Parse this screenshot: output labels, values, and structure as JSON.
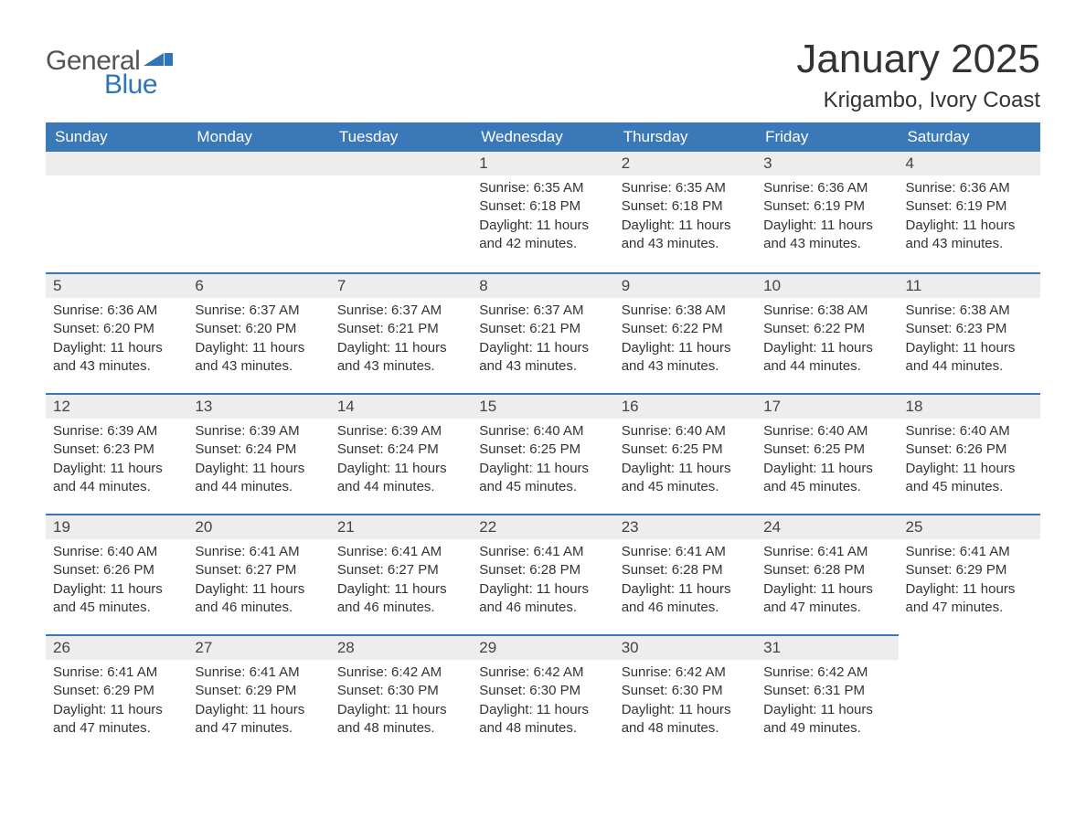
{
  "logo": {
    "text_general": "General",
    "text_blue": "Blue",
    "flag_color": "#2f74b5"
  },
  "title": "January 2025",
  "location": "Krigambo, Ivory Coast",
  "colors": {
    "header_bg": "#3b78b8",
    "header_text": "#ffffff",
    "day_header_bg": "#ededed",
    "day_header_border": "#3b78b8",
    "text": "#333333",
    "background": "#ffffff"
  },
  "typography": {
    "title_fontsize": 44,
    "location_fontsize": 24,
    "weekday_fontsize": 17,
    "daynum_fontsize": 17,
    "body_fontsize": 15
  },
  "weekdays": [
    "Sunday",
    "Monday",
    "Tuesday",
    "Wednesday",
    "Thursday",
    "Friday",
    "Saturday"
  ],
  "labels": {
    "sunrise": "Sunrise:",
    "sunset": "Sunset:",
    "daylight": "Daylight:"
  },
  "weeks": [
    [
      null,
      null,
      null,
      {
        "day": "1",
        "sunrise": "6:35 AM",
        "sunset": "6:18 PM",
        "daylight": "11 hours and 42 minutes."
      },
      {
        "day": "2",
        "sunrise": "6:35 AM",
        "sunset": "6:18 PM",
        "daylight": "11 hours and 43 minutes."
      },
      {
        "day": "3",
        "sunrise": "6:36 AM",
        "sunset": "6:19 PM",
        "daylight": "11 hours and 43 minutes."
      },
      {
        "day": "4",
        "sunrise": "6:36 AM",
        "sunset": "6:19 PM",
        "daylight": "11 hours and 43 minutes."
      }
    ],
    [
      {
        "day": "5",
        "sunrise": "6:36 AM",
        "sunset": "6:20 PM",
        "daylight": "11 hours and 43 minutes."
      },
      {
        "day": "6",
        "sunrise": "6:37 AM",
        "sunset": "6:20 PM",
        "daylight": "11 hours and 43 minutes."
      },
      {
        "day": "7",
        "sunrise": "6:37 AM",
        "sunset": "6:21 PM",
        "daylight": "11 hours and 43 minutes."
      },
      {
        "day": "8",
        "sunrise": "6:37 AM",
        "sunset": "6:21 PM",
        "daylight": "11 hours and 43 minutes."
      },
      {
        "day": "9",
        "sunrise": "6:38 AM",
        "sunset": "6:22 PM",
        "daylight": "11 hours and 43 minutes."
      },
      {
        "day": "10",
        "sunrise": "6:38 AM",
        "sunset": "6:22 PM",
        "daylight": "11 hours and 44 minutes."
      },
      {
        "day": "11",
        "sunrise": "6:38 AM",
        "sunset": "6:23 PM",
        "daylight": "11 hours and 44 minutes."
      }
    ],
    [
      {
        "day": "12",
        "sunrise": "6:39 AM",
        "sunset": "6:23 PM",
        "daylight": "11 hours and 44 minutes."
      },
      {
        "day": "13",
        "sunrise": "6:39 AM",
        "sunset": "6:24 PM",
        "daylight": "11 hours and 44 minutes."
      },
      {
        "day": "14",
        "sunrise": "6:39 AM",
        "sunset": "6:24 PM",
        "daylight": "11 hours and 44 minutes."
      },
      {
        "day": "15",
        "sunrise": "6:40 AM",
        "sunset": "6:25 PM",
        "daylight": "11 hours and 45 minutes."
      },
      {
        "day": "16",
        "sunrise": "6:40 AM",
        "sunset": "6:25 PM",
        "daylight": "11 hours and 45 minutes."
      },
      {
        "day": "17",
        "sunrise": "6:40 AM",
        "sunset": "6:25 PM",
        "daylight": "11 hours and 45 minutes."
      },
      {
        "day": "18",
        "sunrise": "6:40 AM",
        "sunset": "6:26 PM",
        "daylight": "11 hours and 45 minutes."
      }
    ],
    [
      {
        "day": "19",
        "sunrise": "6:40 AM",
        "sunset": "6:26 PM",
        "daylight": "11 hours and 45 minutes."
      },
      {
        "day": "20",
        "sunrise": "6:41 AM",
        "sunset": "6:27 PM",
        "daylight": "11 hours and 46 minutes."
      },
      {
        "day": "21",
        "sunrise": "6:41 AM",
        "sunset": "6:27 PM",
        "daylight": "11 hours and 46 minutes."
      },
      {
        "day": "22",
        "sunrise": "6:41 AM",
        "sunset": "6:28 PM",
        "daylight": "11 hours and 46 minutes."
      },
      {
        "day": "23",
        "sunrise": "6:41 AM",
        "sunset": "6:28 PM",
        "daylight": "11 hours and 46 minutes."
      },
      {
        "day": "24",
        "sunrise": "6:41 AM",
        "sunset": "6:28 PM",
        "daylight": "11 hours and 47 minutes."
      },
      {
        "day": "25",
        "sunrise": "6:41 AM",
        "sunset": "6:29 PM",
        "daylight": "11 hours and 47 minutes."
      }
    ],
    [
      {
        "day": "26",
        "sunrise": "6:41 AM",
        "sunset": "6:29 PM",
        "daylight": "11 hours and 47 minutes."
      },
      {
        "day": "27",
        "sunrise": "6:41 AM",
        "sunset": "6:29 PM",
        "daylight": "11 hours and 47 minutes."
      },
      {
        "day": "28",
        "sunrise": "6:42 AM",
        "sunset": "6:30 PM",
        "daylight": "11 hours and 48 minutes."
      },
      {
        "day": "29",
        "sunrise": "6:42 AM",
        "sunset": "6:30 PM",
        "daylight": "11 hours and 48 minutes."
      },
      {
        "day": "30",
        "sunrise": "6:42 AM",
        "sunset": "6:30 PM",
        "daylight": "11 hours and 48 minutes."
      },
      {
        "day": "31",
        "sunrise": "6:42 AM",
        "sunset": "6:31 PM",
        "daylight": "11 hours and 49 minutes."
      },
      null
    ]
  ]
}
